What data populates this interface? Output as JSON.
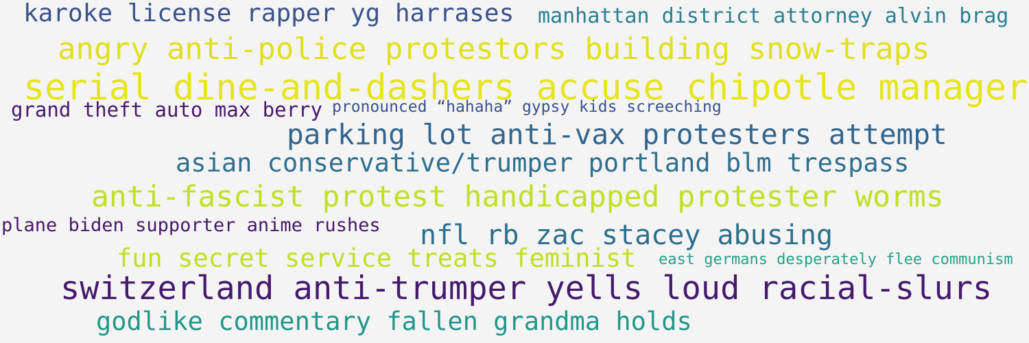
{
  "colors": {
    "background": "#f4f4f4",
    "dark_blue": "#3b528b",
    "teal": "#2c7f8e",
    "yellow": "#e0e021",
    "purple": "#48186a",
    "slate": "#32658e",
    "green": "#22a884",
    "lime": "#bddf26"
  },
  "words": [
    {
      "text": "karoke license rapper yg harrases",
      "color": "#3b528b"
    },
    {
      "text": "manhattan district attorney alvin brag",
      "color": "#2c7f8e"
    },
    {
      "text": "angry anti-police protestors building snow-traps",
      "color": "#e0e021"
    },
    {
      "text": "serial dine-and-dashers accuse chipotle manager",
      "color": "#e5e51d"
    },
    {
      "text": "grand theft auto max berry",
      "color": "#48186a"
    },
    {
      "text": "pronounced “hahaha” gypsy kids screeching",
      "color": "#3b528b"
    },
    {
      "text": "parking lot anti-vax protesters attempt",
      "color": "#32658e"
    },
    {
      "text": "asian conservative/trumper portland blm trespass",
      "color": "#2e6f8e"
    },
    {
      "text": "anti-fascist protest handicapped protester worms",
      "color": "#c2df23"
    },
    {
      "text": "plane biden supporter anime rushes",
      "color": "#48186a"
    },
    {
      "text": "nfl rb zac stacey abusing",
      "color": "#2d708e"
    },
    {
      "text": "fun secret service treats feminist",
      "color": "#c0df25"
    },
    {
      "text": "east germans desperately flee communism",
      "color": "#25a18a"
    },
    {
      "text": "switzerland anti-trumper yells loud racial-slurs",
      "color": "#451a6c"
    },
    {
      "text": "godlike commentary fallen grandma holds",
      "color": "#22978a"
    }
  ]
}
